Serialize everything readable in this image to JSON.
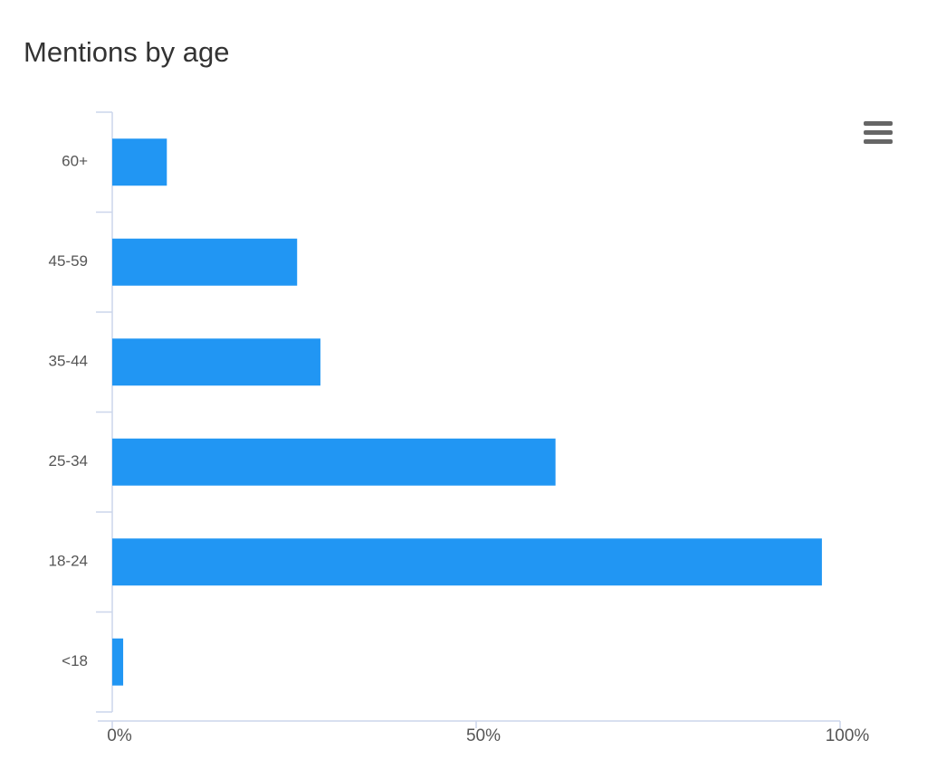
{
  "chart_data": {
    "type": "bar",
    "orientation": "horizontal",
    "title": "Mentions by age",
    "categories": [
      "60+",
      "45-59",
      "35-44",
      "25-34",
      "18-24",
      "<18"
    ],
    "values": [
      7.5,
      25.4,
      28.6,
      60.9,
      97.5,
      1.5
    ],
    "color": "#2196f3",
    "xlim": [
      0,
      100
    ],
    "xticks": [
      {
        "value": 0,
        "label": "0%"
      },
      {
        "value": 50,
        "label": "50%"
      },
      {
        "value": 100,
        "label": "100%"
      }
    ],
    "grid": false
  }
}
